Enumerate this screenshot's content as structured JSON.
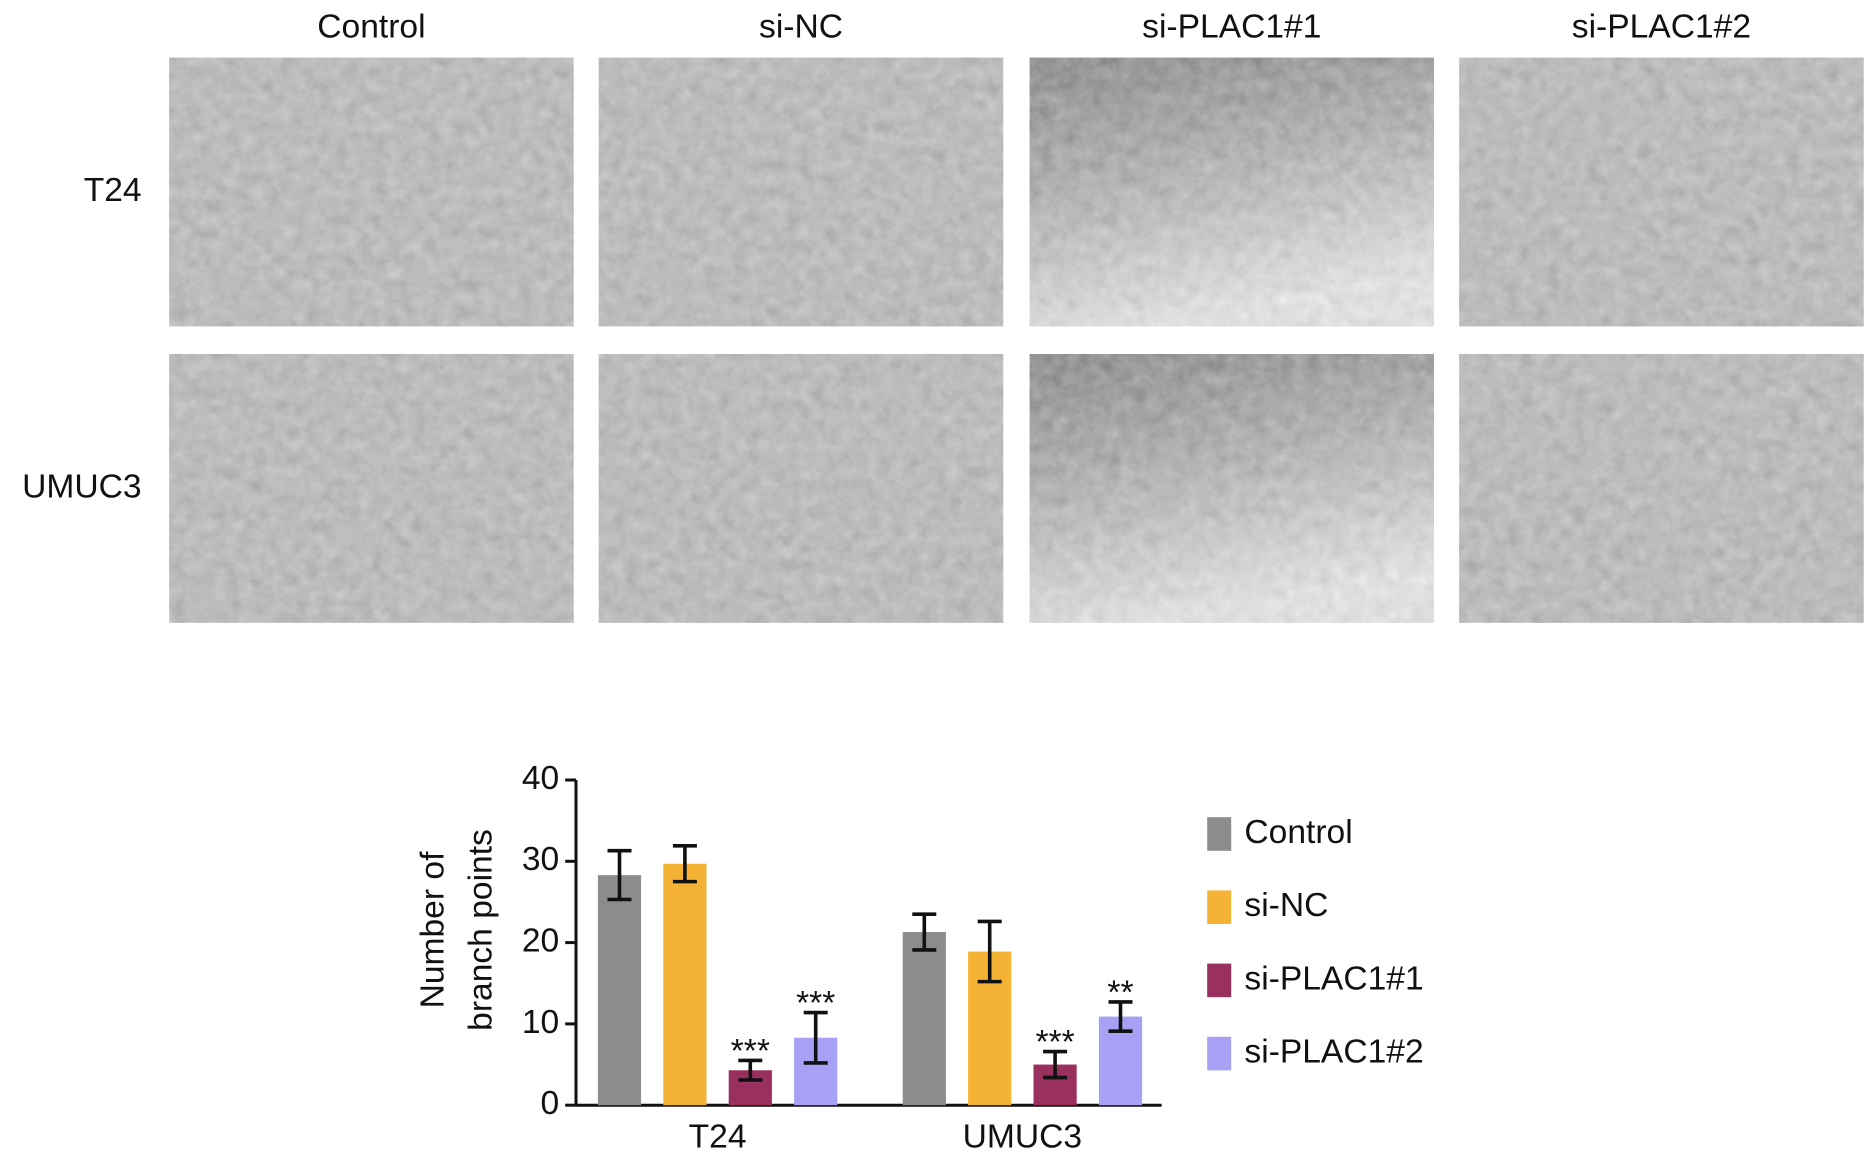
{
  "panels": {
    "columns": [
      "Control",
      "si-NC",
      "si-PLAC1#1",
      "si-PLAC1#2"
    ],
    "rows": [
      "T24",
      "UMUC3"
    ]
  },
  "chart_data": {
    "type": "bar",
    "ylabel": [
      "Number of",
      "branch points"
    ],
    "categories": [
      "T24",
      "UMUC3"
    ],
    "ylim": [
      0,
      40
    ],
    "yticks": [
      0,
      10,
      20,
      30,
      40
    ],
    "legend": "right",
    "series": [
      {
        "name": "Control",
        "color": "#8c8c8c",
        "values": [
          28.3,
          21.3
        ],
        "errors": [
          3.0,
          2.2
        ],
        "significance": [
          null,
          null
        ]
      },
      {
        "name": "si-NC",
        "color": "#f5b335",
        "values": [
          29.7,
          18.9
        ],
        "errors": [
          2.2,
          3.7
        ],
        "significance": [
          null,
          null
        ]
      },
      {
        "name": "si-PLAC1#1",
        "color": "#99305e",
        "values": [
          4.3,
          5.0
        ],
        "errors": [
          1.2,
          1.6
        ],
        "significance": [
          "***",
          "***"
        ]
      },
      {
        "name": "si-PLAC1#2",
        "color": "#a8a0f5",
        "values": [
          8.3,
          10.9
        ],
        "errors": [
          3.1,
          1.8
        ],
        "significance": [
          "***",
          "**"
        ]
      }
    ]
  }
}
